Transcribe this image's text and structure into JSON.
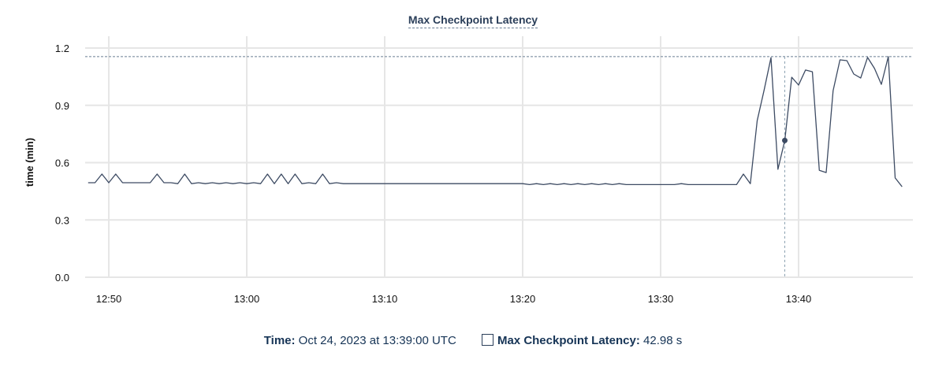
{
  "chart_data": {
    "type": "line",
    "title": "Max Checkpoint Latency",
    "xlabel": "",
    "ylabel": "time (min)",
    "ylim": [
      0,
      1.2
    ],
    "xlim": [
      "12:48:20",
      "13:48:00"
    ],
    "yticks": [
      "0.0",
      "0.3",
      "0.6",
      "0.9",
      "1.2"
    ],
    "xticks": [
      "12:50",
      "13:00",
      "13:10",
      "13:20",
      "13:30",
      "13:40"
    ],
    "grid": true,
    "line_color": "#3d4b63",
    "max_line_value": 1.155,
    "hover_time": "13:39:00",
    "hover_value": 0.716,
    "x": [
      "12:48:30",
      "12:49:00",
      "12:49:30",
      "12:50:00",
      "12:50:30",
      "12:51:00",
      "12:51:30",
      "12:52:00",
      "12:52:30",
      "12:53:00",
      "12:53:30",
      "12:54:00",
      "12:54:30",
      "12:55:00",
      "12:55:30",
      "12:56:00",
      "12:56:30",
      "12:57:00",
      "12:57:30",
      "12:58:00",
      "12:58:30",
      "12:59:00",
      "12:59:30",
      "13:00:00",
      "13:00:30",
      "13:01:00",
      "13:01:30",
      "13:02:00",
      "13:02:30",
      "13:03:00",
      "13:03:30",
      "13:04:00",
      "13:04:30",
      "13:05:00",
      "13:05:30",
      "13:06:00",
      "13:06:30",
      "13:07:00",
      "13:07:30",
      "13:08:00",
      "13:08:30",
      "13:09:00",
      "13:09:30",
      "13:10:00",
      "13:10:30",
      "13:11:00",
      "13:11:30",
      "13:12:00",
      "13:12:30",
      "13:13:00",
      "13:13:30",
      "13:14:00",
      "13:14:30",
      "13:15:00",
      "13:15:30",
      "13:16:00",
      "13:16:30",
      "13:17:00",
      "13:17:30",
      "13:18:00",
      "13:18:30",
      "13:19:00",
      "13:19:30",
      "13:20:00",
      "13:20:30",
      "13:21:00",
      "13:21:30",
      "13:22:00",
      "13:22:30",
      "13:23:00",
      "13:23:30",
      "13:24:00",
      "13:24:30",
      "13:25:00",
      "13:25:30",
      "13:26:00",
      "13:26:30",
      "13:27:00",
      "13:27:30",
      "13:28:00",
      "13:28:30",
      "13:29:00",
      "13:29:30",
      "13:30:00",
      "13:30:30",
      "13:31:00",
      "13:31:30",
      "13:32:00",
      "13:32:30",
      "13:33:00",
      "13:33:30",
      "13:34:00",
      "13:34:30",
      "13:35:00",
      "13:35:30",
      "13:36:00",
      "13:36:30",
      "13:37:00",
      "13:37:30",
      "13:38:00",
      "13:38:30",
      "13:39:00",
      "13:39:30",
      "13:40:00",
      "13:40:30",
      "13:41:00",
      "13:41:30",
      "13:42:00",
      "13:42:30",
      "13:43:00",
      "13:43:30",
      "13:44:00",
      "13:44:30",
      "13:45:00",
      "13:45:30",
      "13:46:00",
      "13:46:30",
      "13:47:00",
      "13:47:30"
    ],
    "y": [
      0.495,
      0.495,
      0.54,
      0.495,
      0.54,
      0.495,
      0.495,
      0.495,
      0.495,
      0.495,
      0.54,
      0.495,
      0.495,
      0.49,
      0.54,
      0.49,
      0.495,
      0.49,
      0.495,
      0.49,
      0.495,
      0.49,
      0.495,
      0.49,
      0.495,
      0.49,
      0.54,
      0.49,
      0.54,
      0.49,
      0.54,
      0.49,
      0.495,
      0.49,
      0.54,
      0.49,
      0.495,
      0.49,
      0.49,
      0.49,
      0.49,
      0.49,
      0.49,
      0.49,
      0.49,
      0.49,
      0.49,
      0.49,
      0.49,
      0.49,
      0.49,
      0.49,
      0.49,
      0.49,
      0.49,
      0.49,
      0.49,
      0.49,
      0.49,
      0.49,
      0.49,
      0.49,
      0.49,
      0.49,
      0.485,
      0.49,
      0.485,
      0.49,
      0.485,
      0.49,
      0.485,
      0.49,
      0.485,
      0.49,
      0.485,
      0.49,
      0.485,
      0.49,
      0.485,
      0.485,
      0.485,
      0.485,
      0.485,
      0.485,
      0.485,
      0.485,
      0.49,
      0.485,
      0.485,
      0.485,
      0.485,
      0.485,
      0.485,
      0.485,
      0.485,
      0.54,
      0.49,
      0.82,
      0.98,
      1.15,
      0.565,
      0.716,
      1.047,
      1.006,
      1.085,
      1.076,
      0.56,
      0.548,
      0.977,
      1.138,
      1.134,
      1.064,
      1.043,
      1.151,
      1.093,
      1.01,
      1.155,
      0.52,
      0.474
    ]
  },
  "legend": {
    "time_label": "Time:",
    "time_value": "Oct 24, 2023 at 13:39:00 UTC",
    "series_label": "Max Checkpoint Latency:",
    "series_value": "42.98 s"
  }
}
